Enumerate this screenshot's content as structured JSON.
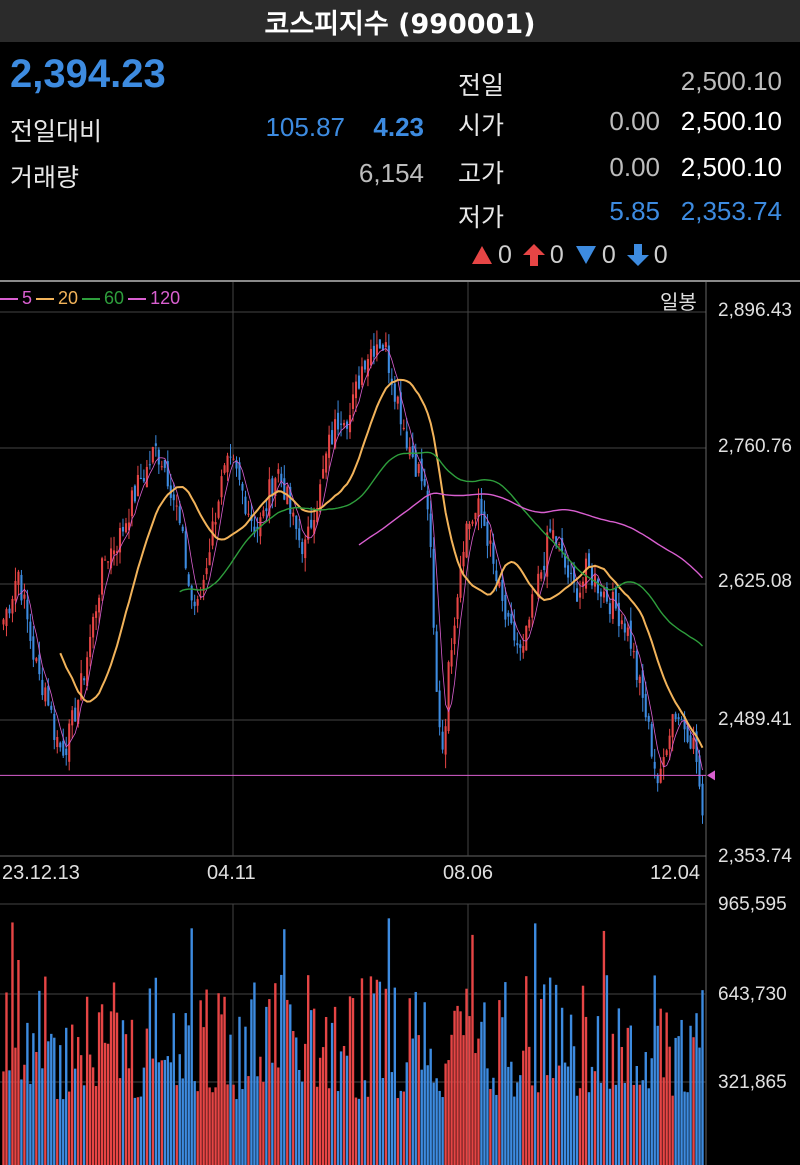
{
  "title": "코스피지수 (990001)",
  "quote": {
    "price": "2,394.23",
    "change_label": "전일대비",
    "change": "105.87",
    "change_pct": "4.23",
    "volume_label": "거래량",
    "volume": "6,154",
    "prev_label": "전일",
    "prev": "2,500.10",
    "open_label": "시가",
    "open_diff": "0.00",
    "open": "2,500.10",
    "high_label": "고가",
    "high_diff": "0.00",
    "high": "2,500.10",
    "low_label": "저가",
    "low_diff": "5.85",
    "low": "2,353.74"
  },
  "counters": [
    {
      "icon": "up-triangle-icon",
      "color": "#e64545",
      "value": "0"
    },
    {
      "icon": "upper-limit-arrow-icon",
      "color": "#e64545",
      "value": "0"
    },
    {
      "icon": "down-triangle-icon",
      "color": "#3d8be0",
      "value": "0"
    },
    {
      "icon": "lower-limit-arrow-icon",
      "color": "#3d8be0",
      "value": "0"
    }
  ],
  "chart": {
    "period_label": "일봉",
    "legend": [
      {
        "label": "5",
        "color": "#d95fd0"
      },
      {
        "label": "20",
        "color": "#f2b35a"
      },
      {
        "label": "60",
        "color": "#2e9e3c"
      },
      {
        "label": "120",
        "color": "#d95fd0"
      }
    ],
    "price_ticks": [
      "2,896.43",
      "2,760.76",
      "2,625.08",
      "2,489.41",
      "2,353.74"
    ],
    "date_ticks": [
      "23.12.13",
      "04.11",
      "08.06",
      "12.04"
    ],
    "volume_ticks": [
      "965,595",
      "643,730",
      "321,865"
    ],
    "colors": {
      "up": "#e64545",
      "down": "#3d8be0",
      "grid": "#444444",
      "current_line": "#d95fd0"
    }
  },
  "chart_data": {
    "type": "candlestick",
    "ylim": [
      2353.74,
      2896.43
    ],
    "x": [
      "23.12.13",
      "04.11",
      "08.06",
      "12.04"
    ],
    "close_path": [
      2590,
      2610,
      2640,
      2600,
      2560,
      2530,
      2520,
      2480,
      2460,
      2470,
      2500,
      2530,
      2570,
      2610,
      2650,
      2660,
      2670,
      2690,
      2710,
      2730,
      2740,
      2760,
      2750,
      2730,
      2700,
      2660,
      2610,
      2600,
      2640,
      2680,
      2720,
      2740,
      2740,
      2720,
      2700,
      2680,
      2690,
      2720,
      2740,
      2720,
      2690,
      2670,
      2660,
      2700,
      2720,
      2760,
      2780,
      2800,
      2790,
      2820,
      2850,
      2860,
      2870,
      2860,
      2830,
      2800,
      2770,
      2750,
      2730,
      2700,
      2520,
      2460,
      2560,
      2620,
      2680,
      2690,
      2700,
      2680,
      2640,
      2610,
      2580,
      2570,
      2550,
      2590,
      2620,
      2650,
      2680,
      2660,
      2640,
      2620,
      2620,
      2640,
      2630,
      2620,
      2610,
      2600,
      2590,
      2570,
      2530,
      2500,
      2460,
      2420,
      2470,
      2500,
      2490,
      2480,
      2460,
      2394.23
    ],
    "volume_ylim": [
      0,
      965595
    ]
  }
}
